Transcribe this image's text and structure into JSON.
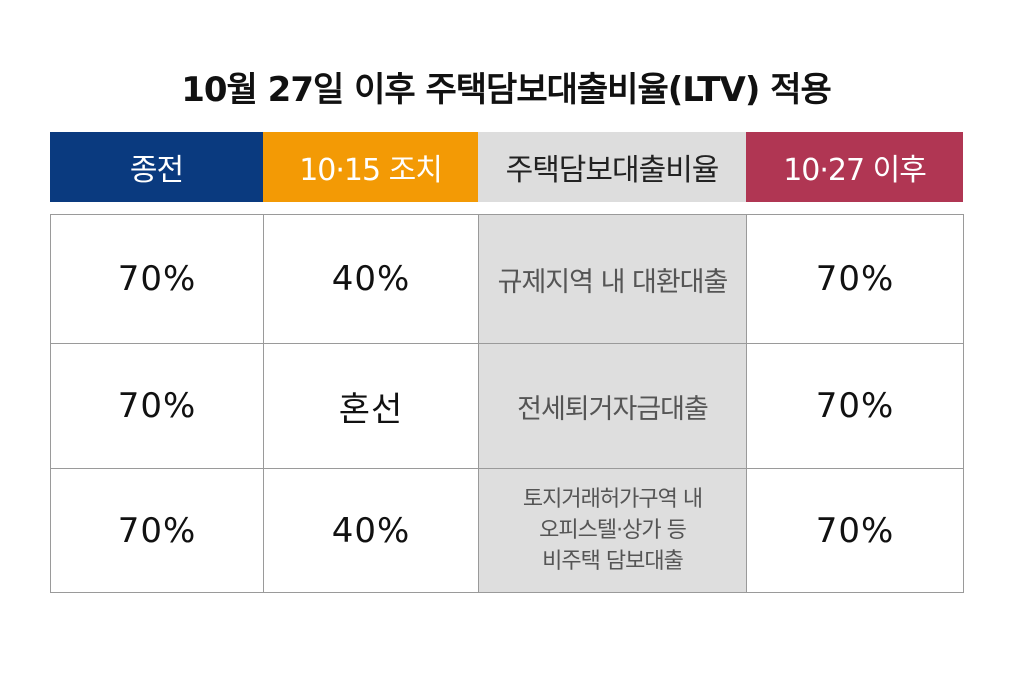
{
  "title": "10월 27일 이후 주택담보대출비율(LTV) 적용",
  "headers": {
    "before": "종전",
    "oct15": "10·15 조치",
    "ltv": "주택담보대출비율",
    "after": "10·27 이후"
  },
  "rows": [
    {
      "before": "70%",
      "oct15": "40%",
      "category": [
        "규제지역 내 대환대출"
      ],
      "after": "70%"
    },
    {
      "before": "70%",
      "oct15": "혼선",
      "category": [
        "전세퇴거자금대출"
      ],
      "after": "70%"
    },
    {
      "before": "70%",
      "oct15": "40%",
      "category": [
        "토지거래허가구역 내",
        "오피스텔·상가 등",
        "비주택 담보대출"
      ],
      "after": "70%"
    }
  ],
  "colors": {
    "before_header": "#0a3a7f",
    "oct15_header": "#f39a05",
    "ltv_header": "#dddddd",
    "after_header": "#b03653",
    "category_cell": "#dedede"
  }
}
